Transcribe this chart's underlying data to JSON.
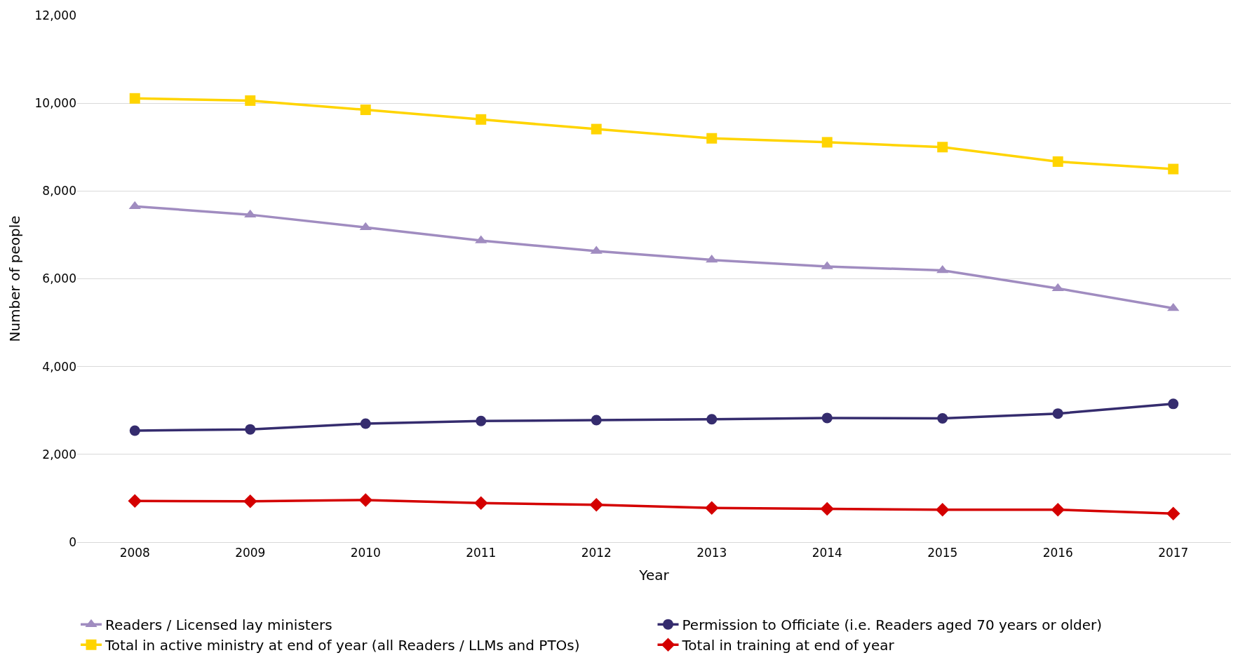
{
  "chart_data": {
    "type": "line",
    "xlabel": "Year",
    "ylabel": "Number of people",
    "categories": [
      "2008",
      "2009",
      "2010",
      "2011",
      "2012",
      "2013",
      "2014",
      "2015",
      "2016",
      "2017"
    ],
    "series": [
      {
        "name": "Readers / Licensed lay ministers",
        "color": "#a08cc0",
        "marker": "triangle",
        "values": [
          7650,
          7460,
          7170,
          6870,
          6630,
          6430,
          6280,
          6190,
          5780,
          5330
        ]
      },
      {
        "name": "Permission to Officiate (i.e. Readers aged 70 years or older)",
        "color": "#352c6e",
        "marker": "circle",
        "values": [
          2540,
          2570,
          2700,
          2760,
          2780,
          2800,
          2830,
          2820,
          2930,
          3150
        ]
      },
      {
        "name": "Total in active ministry at end of year (all Readers / LLMs and PTOs)",
        "color": "#ffd400",
        "marker": "square",
        "values": [
          10110,
          10060,
          9850,
          9630,
          9410,
          9200,
          9110,
          9000,
          8670,
          8500
        ]
      },
      {
        "name": "Total in training at end of year",
        "color": "#d40000",
        "marker": "diamond",
        "values": [
          940,
          930,
          960,
          890,
          850,
          780,
          760,
          740,
          740,
          650
        ]
      }
    ],
    "ylim": [
      0,
      12000
    ],
    "yticks": [
      {
        "value": 0,
        "label": "0"
      },
      {
        "value": 2000,
        "label": "2,000"
      },
      {
        "value": 4000,
        "label": "4,000"
      },
      {
        "value": 6000,
        "label": "6,000"
      },
      {
        "value": 8000,
        "label": "8,000"
      },
      {
        "value": 10000,
        "label": "10,000"
      },
      {
        "value": 12000,
        "label": "12,000"
      }
    ],
    "grid": "y",
    "legend": "bottom",
    "line_style": "solid"
  }
}
